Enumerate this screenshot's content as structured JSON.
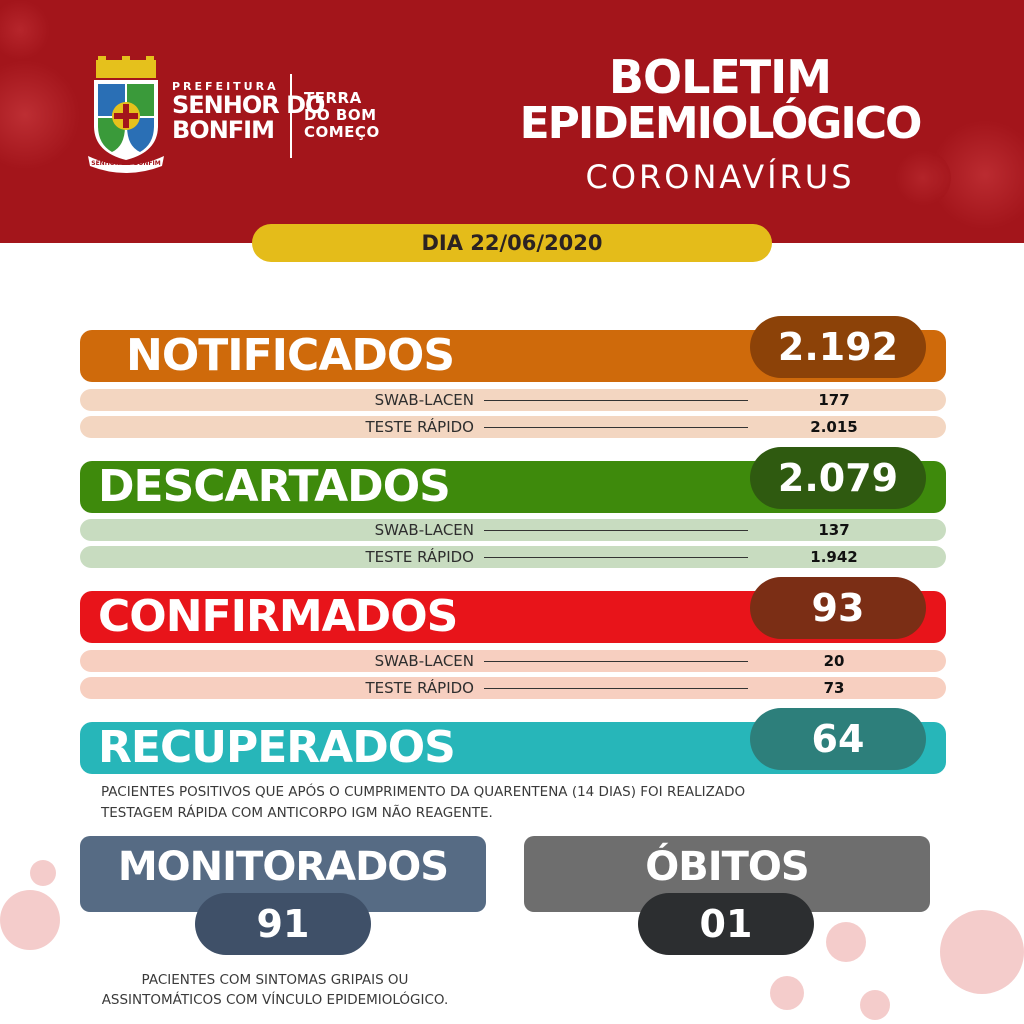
{
  "header": {
    "prefeitura_small": "PREFEITURA",
    "prefeitura_line1": "SENHOR DO",
    "prefeitura_line2": "BONFIM",
    "slogan_line1": "TERRA",
    "slogan_line2": "DO BOM",
    "slogan_line3": "COMEÇO",
    "title_line1": "BOLETIM",
    "title_line2": "EPIDEMIOLÓGICO",
    "subtitle": "CORONAVÍRUS",
    "date": "DIA 22/06/2020",
    "logo_ribbon": "SENHOR DO BONFIM"
  },
  "notificados": {
    "label": "NOTIFICADOS",
    "total": "2.192",
    "rows": [
      {
        "label": "SWAB-LACEN",
        "value": "177"
      },
      {
        "label": "TESTE RÁPIDO",
        "value": "2.015"
      }
    ]
  },
  "descartados": {
    "label": "DESCARTADOS",
    "total": "2.079",
    "rows": [
      {
        "label": "SWAB-LACEN",
        "value": "137"
      },
      {
        "label": "TESTE RÁPIDO",
        "value": "1.942"
      }
    ]
  },
  "confirmados": {
    "label": "CONFIRMADOS",
    "total": "93",
    "rows": [
      {
        "label": "SWAB-LACEN",
        "value": "20"
      },
      {
        "label": "TESTE RÁPIDO",
        "value": "73"
      }
    ]
  },
  "recuperados": {
    "label": "RECUPERADOS",
    "total": "64",
    "note_line1": "PACIENTES POSITIVOS QUE APÓS O CUMPRIMENTO DA QUARENTENA (14 DIAS) FOI REALIZADO",
    "note_line2": "TESTAGEM RÁPIDA COM ANTICORPO IGM NÃO REAGENTE."
  },
  "monitorados": {
    "label": "MONITORADOS",
    "total": "91",
    "note_line1": "PACIENTES COM SINTOMAS GRIPAIS OU",
    "note_line2": "ASSINTOMÁTICOS COM VÍNCULO EPIDEMIOLÓGICO."
  },
  "obitos": {
    "label": "ÓBITOS",
    "total": "01"
  },
  "colors": {
    "header_red": "#a3151b",
    "date_yellow": "#e4bc1a",
    "notificados": "#cf6a0b",
    "notificados_pill": "#8c4208",
    "notificados_row": "#f3d6c1",
    "descartados": "#3e8a0c",
    "descartados_pill": "#2f5a10",
    "descartados_row": "#c8dcc0",
    "confirmados": "#e8141a",
    "confirmados_pill": "#7b2e15",
    "confirmados_row": "#f7cfc0",
    "recuperados": "#27b6b9",
    "recuperados_pill": "#2d7f7b",
    "monitorados": "#566b84",
    "monitorados_pill": "#3f5068",
    "obitos": "#6e6e6e",
    "obitos_pill": "#2c2e30"
  }
}
